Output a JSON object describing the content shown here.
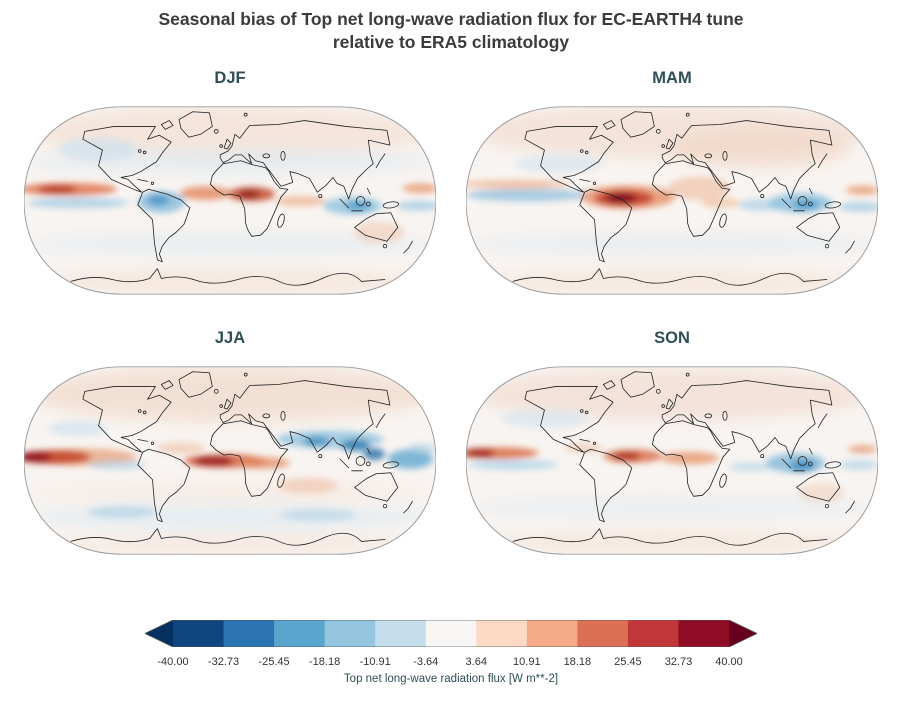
{
  "figure": {
    "title_line1": "Seasonal bias of Top net long-wave radiation flux for EC-EARTH4 tune",
    "title_line2": "relative to ERA5 climatology"
  },
  "chart_data": {
    "type": "heatmap",
    "subtype": "filled-contour global map grid (2x2 seasonal panels)",
    "projection": "Robinson",
    "title": "Seasonal bias of Top net long-wave radiation flux for EC-EARTH4 tune relative to ERA5 climatology",
    "variable": "Top net long-wave radiation flux",
    "units": "W m**-2",
    "model": "EC-EARTH4 tune",
    "reference": "ERA5 climatology",
    "panels": [
      {
        "season": "DJF",
        "approx_bias_extremes_wm2": {
          "tropical_east_pacific": 20,
          "equatorial_central_africa": 30,
          "northern_south_america": -18,
          "maritime_continent": -15,
          "background": 5
        }
      },
      {
        "season": "MAM",
        "approx_bias_extremes_wm2": {
          "equatorial_atlantic_south_america": 40,
          "equatorial_pacific": -14,
          "maritime_continent": -18,
          "western_pacific_equator": 15,
          "background": 5
        }
      },
      {
        "season": "JJA",
        "approx_bias_extremes_wm2": {
          "eastern_equatorial_pacific": 38,
          "gulf_of_guinea_atlantic": 35,
          "south_asian_monsoon_region": -25,
          "tropical_west_pacific": -22,
          "background": 5
        }
      },
      {
        "season": "SON",
        "approx_bias_extremes_wm2": {
          "eastern_equatorial_pacific": 28,
          "equatorial_atlantic": 26,
          "maritime_continent": -20,
          "indian_ocean": -10,
          "background": 5
        }
      }
    ],
    "colorbar": {
      "label": "Top net long-wave radiation flux [W m**-2]",
      "ticks": [
        -40.0,
        -32.73,
        -25.45,
        -18.18,
        -10.91,
        -3.64,
        3.64,
        10.91,
        18.18,
        25.45,
        32.73,
        40.0
      ],
      "tick_labels": [
        "-40.00",
        "-32.73",
        "-25.45",
        "-18.18",
        "-10.91",
        "-3.64",
        "3.64",
        "10.91",
        "18.18",
        "25.45",
        "32.73",
        "40.00"
      ],
      "range": [
        -40,
        40
      ],
      "n_segments": 11,
      "colormap": "RdBu_r",
      "extend": "both",
      "segment_colors": [
        "#11457f",
        "#2a74b3",
        "#58a5cd",
        "#94c6df",
        "#c3ddeb",
        "#f7f6f5",
        "#fbd9c4",
        "#f5ab87",
        "#dd6f55",
        "#c13639",
        "#8e0d25"
      ],
      "extend_colors": {
        "left": "#053061",
        "right": "#67001f"
      }
    }
  }
}
